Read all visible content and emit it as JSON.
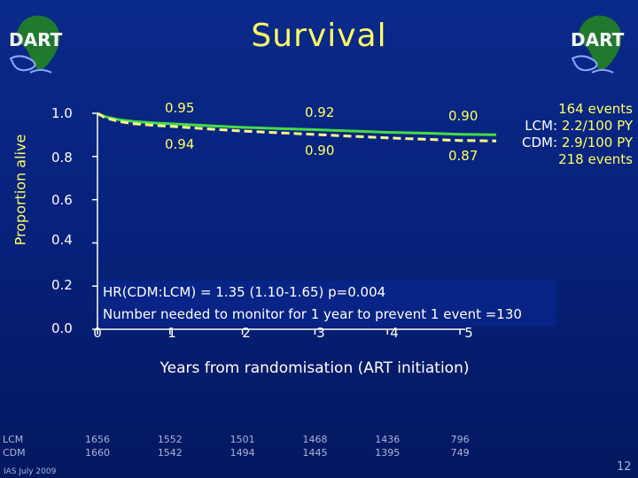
{
  "title": "Survival",
  "logo_text": "DART",
  "chart_data": {
    "type": "line",
    "title": "Survival",
    "xlabel": "Years from randomisation (ART initiation)",
    "ylabel": "Proportion alive",
    "xlim": [
      0,
      5.5
    ],
    "ylim": [
      0.0,
      1.0
    ],
    "x_ticks": [
      "0",
      "1",
      "2",
      "3",
      "4",
      "5"
    ],
    "y_ticks": [
      "0.0",
      "0.2",
      "0.4",
      "0.6",
      "0.8",
      "1.0"
    ],
    "series": [
      {
        "name": "LCM",
        "color": "#44dd44",
        "style": "solid",
        "x": [
          0,
          0.1,
          0.3,
          0.5,
          0.8,
          1.0,
          1.5,
          2.0,
          2.5,
          3.0,
          3.5,
          4.0,
          4.5,
          5.0,
          5.5
        ],
        "y": [
          1.0,
          0.985,
          0.97,
          0.962,
          0.955,
          0.952,
          0.943,
          0.935,
          0.929,
          0.924,
          0.918,
          0.912,
          0.908,
          0.903,
          0.901
        ]
      },
      {
        "name": "CDM",
        "color": "#ffff88",
        "style": "dashed",
        "x": [
          0,
          0.1,
          0.3,
          0.5,
          0.8,
          1.0,
          1.5,
          2.0,
          2.5,
          3.0,
          3.5,
          4.0,
          4.5,
          5.0,
          5.5
        ],
        "y": [
          1.0,
          0.98,
          0.962,
          0.952,
          0.944,
          0.94,
          0.928,
          0.918,
          0.91,
          0.902,
          0.894,
          0.886,
          0.88,
          0.874,
          0.872
        ]
      }
    ],
    "annotations_lcm": [
      {
        "x": 1,
        "label": "0.95"
      },
      {
        "x": 3,
        "label": "0.92"
      },
      {
        "x": 5,
        "label": "0.90"
      }
    ],
    "annotations_cdm": [
      {
        "x": 1,
        "label": "0.94"
      },
      {
        "x": 3,
        "label": "0.90"
      },
      {
        "x": 5,
        "label": "0.87"
      }
    ],
    "legend": [
      {
        "key": "",
        "value": "164 events"
      },
      {
        "key": "LCM:",
        "value": "2.2/100 PY"
      },
      {
        "key": "CDM:",
        "value": "2.9/100 PY"
      },
      {
        "key": "",
        "value": "218 events"
      }
    ],
    "hr_text": "HR(CDM:LCM) = 1.35 (1.10-1.65) p=0.004",
    "nnt_text": "Number needed to monitor for 1 year to prevent 1 event =130",
    "risk_table": {
      "groups": [
        "LCM",
        "CDM"
      ],
      "x": [
        0,
        1,
        2,
        3,
        4,
        5
      ],
      "LCM": [
        "1656",
        "1552",
        "1501",
        "1468",
        "1436",
        "796"
      ],
      "CDM": [
        "1660",
        "1542",
        "1494",
        "1445",
        "1395",
        "749"
      ]
    }
  },
  "footer": {
    "date": "IAS July 2009",
    "page": "12"
  }
}
